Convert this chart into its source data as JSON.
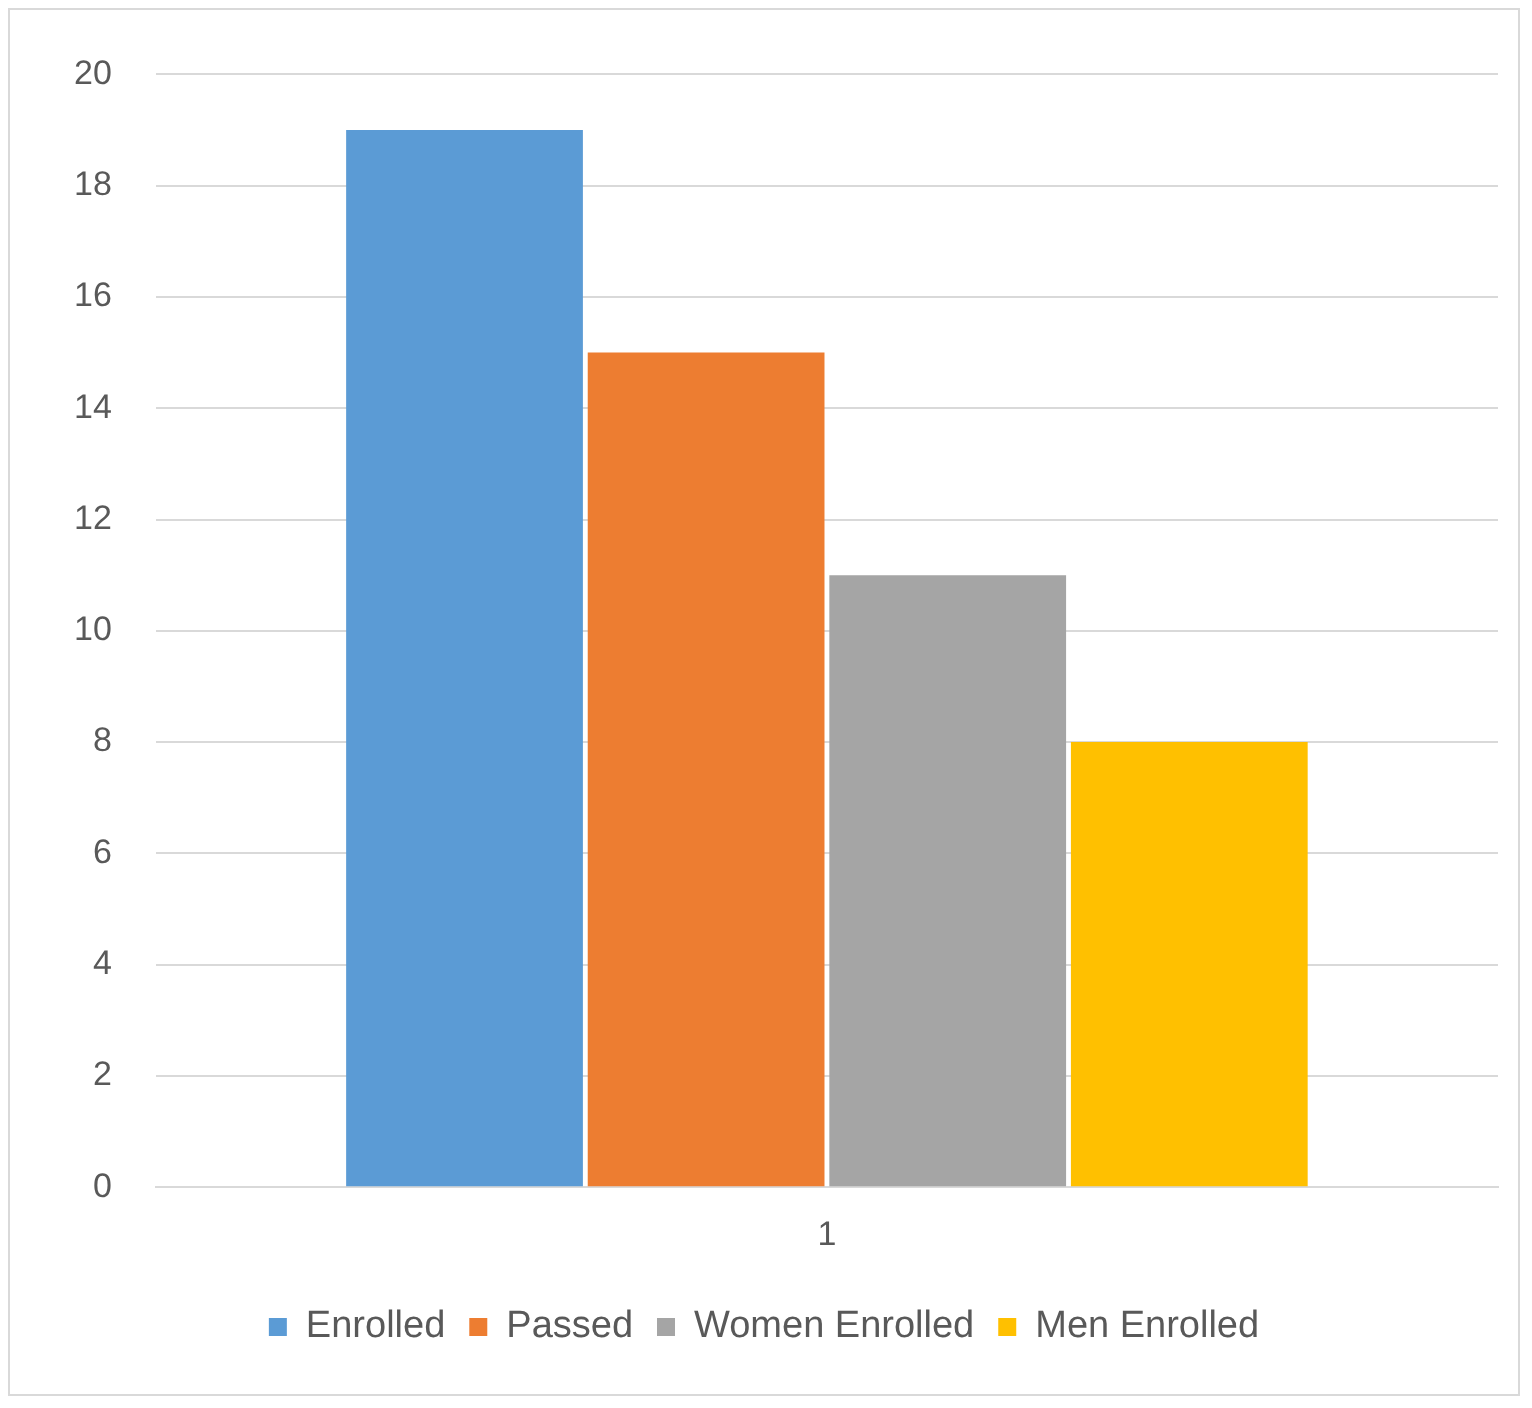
{
  "chart_data": {
    "type": "bar",
    "categories": [
      "1"
    ],
    "series": [
      {
        "name": "Enrolled",
        "color": "#5b9bd5",
        "values": [
          19
        ]
      },
      {
        "name": "Passed",
        "color": "#ed7d31",
        "values": [
          15
        ]
      },
      {
        "name": "Women Enrolled",
        "color": "#a5a5a5",
        "values": [
          11
        ]
      },
      {
        "name": "Men Enrolled",
        "color": "#ffc000",
        "values": [
          8
        ]
      }
    ],
    "ylim": [
      0,
      20
    ],
    "yticks": [
      0,
      2,
      4,
      6,
      8,
      10,
      12,
      14,
      16,
      18,
      20
    ],
    "grid": "y",
    "legend": "bottom"
  }
}
